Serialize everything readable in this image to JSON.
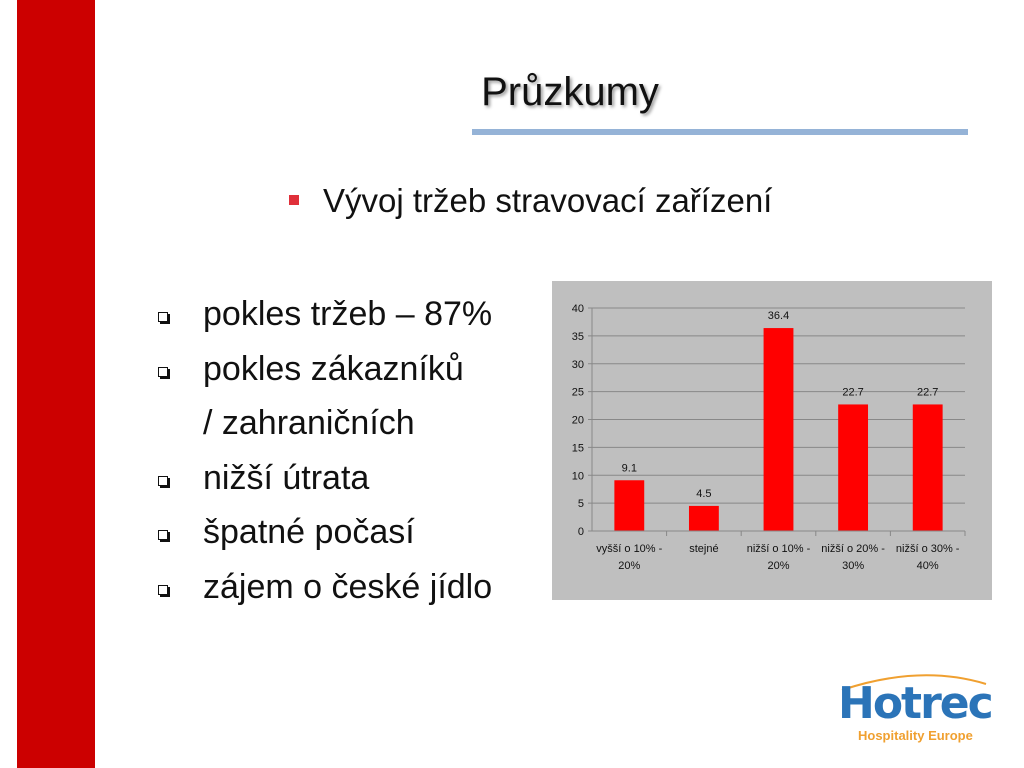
{
  "title": "Průzkumy",
  "heading": "Vývoj tržeb stravovací zařízení",
  "bullets": [
    [
      "pokles tržeb – 87%"
    ],
    [
      "pokles zákazníků",
      "/ zahraničních"
    ],
    [
      "nižší útrata"
    ],
    [
      "špatné počasí"
    ],
    [
      "zájem o české jídlo"
    ]
  ],
  "logo": {
    "name": "Hotrec",
    "tagline": "Hospitality Europe"
  },
  "chart_data": {
    "type": "bar",
    "categories": [
      "vyšší o 10% - 20%",
      "stejné",
      "nižší o 10% - 20%",
      "nižší o 20% - 30%",
      "nižší o 30% - 40%"
    ],
    "values": [
      9.1,
      4.5,
      36.4,
      22.7,
      22.7
    ],
    "color": "#ff0000",
    "ylim": [
      0,
      40
    ],
    "yticks": [
      0,
      5,
      10,
      15,
      20,
      25,
      30,
      35,
      40
    ],
    "grid": true
  }
}
